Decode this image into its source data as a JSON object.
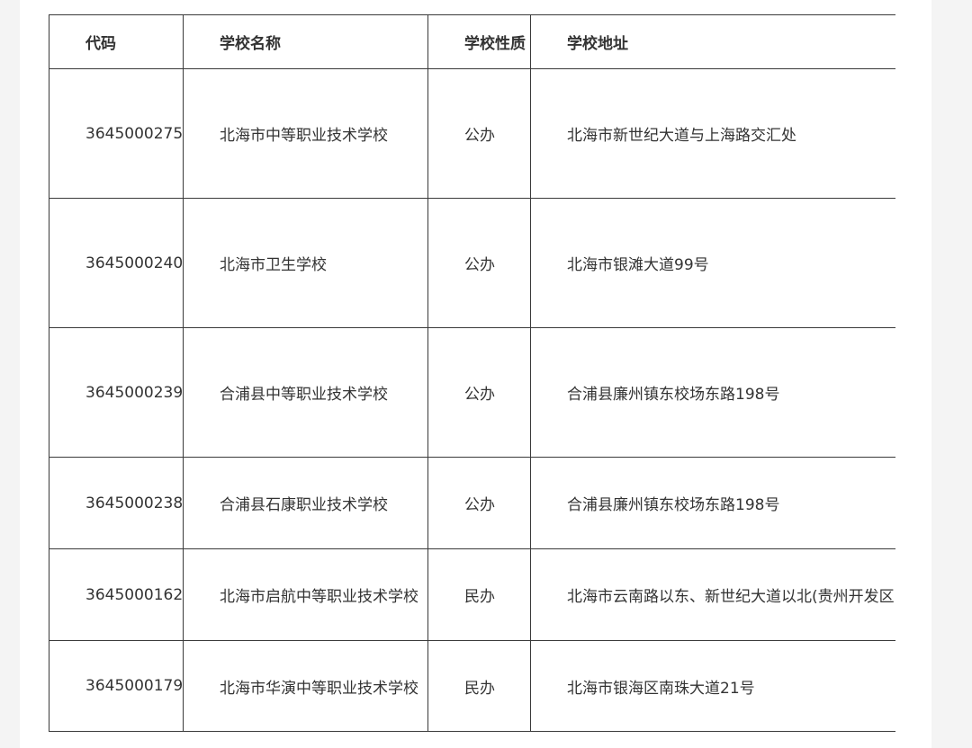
{
  "table": {
    "header": [
      "代码",
      "学校名称",
      "学校性质",
      "学校地址"
    ],
    "rows": [
      [
        "3645000275",
        "北海市中等职业技术学校",
        "公办",
        "北海市新世纪大道与上海路交汇处"
      ],
      [
        "3645000240",
        "北海市卫生学校",
        "公办",
        "北海市银滩大道99号"
      ],
      [
        "3645000239",
        "合浦县中等职业技术学校",
        "公办",
        "合浦县廉州镇东校场东路198号"
      ],
      [
        "3645000238",
        "合浦县石康职业技术学校",
        "公办",
        "合浦县廉州镇东校场东路198号"
      ],
      [
        "3645000162",
        "北海市启航中等职业技术学校",
        "民办",
        "北海市云南路以东、新世纪大道以北(贵州开发区"
      ],
      [
        "3645000179",
        "北海市华演中等职业技术学校",
        "民办",
        "北海市银海区南珠大道21号"
      ]
    ]
  }
}
